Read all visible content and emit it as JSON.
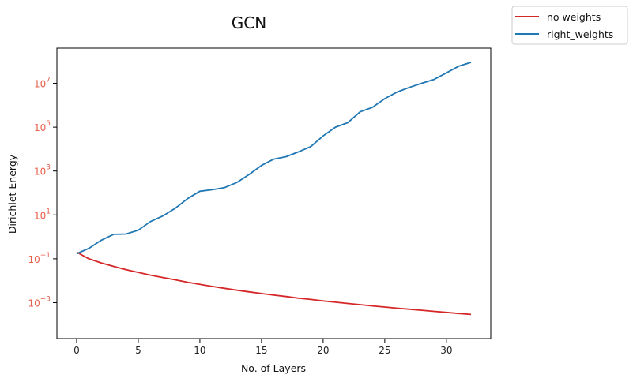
{
  "chart_data": {
    "type": "line",
    "title": "GCN",
    "xlabel": "No. of Layers",
    "ylabel": "Dirichlet Energy",
    "yscale": "log",
    "xlim": [
      -1.6,
      33.6
    ],
    "ylim": [
      2.3e-05,
      400000000
    ],
    "xticks": [
      0,
      5,
      10,
      15,
      20,
      25,
      30
    ],
    "yticks": [
      {
        "value": 0.001,
        "base": "10",
        "exp": "−3"
      },
      {
        "value": 0.1,
        "base": "10",
        "exp": "−1"
      },
      {
        "value": 10,
        "base": "10",
        "exp": "1"
      },
      {
        "value": 1000,
        "base": "10",
        "exp": "3"
      },
      {
        "value": 100000,
        "base": "10",
        "exp": "5"
      },
      {
        "value": 10000000,
        "base": "10",
        "exp": "7"
      }
    ],
    "grid": false,
    "legend_position": "outside-top-right",
    "tick_label_color_y": "#e8604c",
    "series": [
      {
        "name": "no weights",
        "color": "#d62728",
        "x": [
          0,
          1,
          2,
          3,
          4,
          5,
          6,
          7,
          8,
          9,
          10,
          11,
          12,
          13,
          14,
          15,
          16,
          17,
          18,
          19,
          20,
          21,
          22,
          23,
          24,
          25,
          26,
          27,
          28,
          29,
          30,
          31,
          32
        ],
        "y": [
          0.2,
          0.1,
          0.065,
          0.045,
          0.032,
          0.024,
          0.018,
          0.014,
          0.011,
          0.0085,
          0.0068,
          0.0055,
          0.0045,
          0.0037,
          0.0031,
          0.0026,
          0.0022,
          0.0019,
          0.0016,
          0.0014,
          0.0012,
          0.00105,
          0.00092,
          0.00081,
          0.00071,
          0.00063,
          0.00056,
          0.0005,
          0.00045,
          0.0004,
          0.00036,
          0.00032,
          0.00029
        ]
      },
      {
        "name": "right_weights",
        "color": "#1f77b4",
        "x": [
          0,
          1,
          2,
          3,
          4,
          5,
          6,
          7,
          8,
          9,
          10,
          11,
          12,
          13,
          14,
          15,
          16,
          17,
          18,
          19,
          20,
          21,
          22,
          23,
          24,
          25,
          26,
          27,
          28,
          29,
          30,
          31,
          32
        ],
        "y": [
          0.17,
          0.3,
          0.7,
          1.3,
          1.35,
          2,
          5,
          9,
          20,
          55,
          120,
          140,
          175,
          300,
          700,
          1800,
          3500,
          4500,
          7500,
          13000,
          40000,
          100000,
          160000,
          500000,
          800000,
          2000000,
          4000000,
          6500000,
          10000000,
          15000000,
          30000000,
          60000000,
          90000000
        ]
      }
    ]
  }
}
